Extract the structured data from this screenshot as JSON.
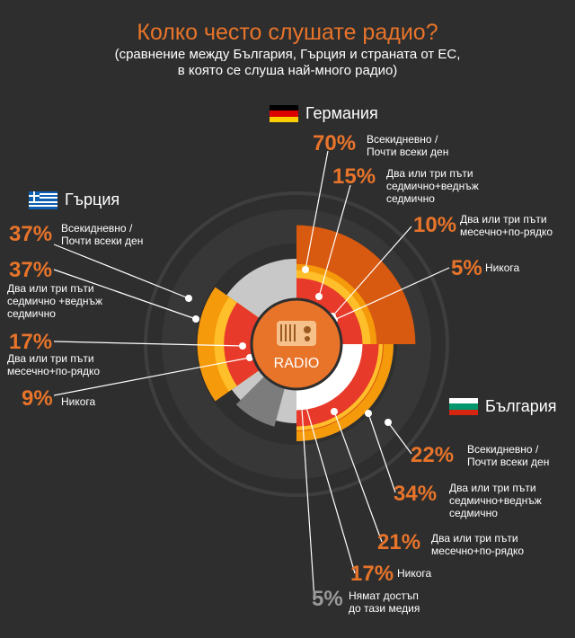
{
  "header": {
    "title": "Колко често слушате радио?",
    "subtitle_line1": "(сравнение между България, Гърция и страната от ЕС,",
    "subtitle_line2": "в която се слуша най-много радио)"
  },
  "center_label": "RADIO",
  "colors": {
    "background": "#2e2e2e",
    "accent": "#e8742a",
    "daily": "#d85a10",
    "weekly": "#f59a0b",
    "monthly": "#ffbf2a",
    "never": "#e83a2a",
    "no_access": "#ffffff",
    "rest_ring": "#3c3c3c",
    "greek_empty": "#c8c8c8",
    "bg_empty": "#9a9a9a"
  },
  "chart_data": {
    "type": "pie",
    "title": "Колко често слушате радио?",
    "series": [
      {
        "name": "Германия",
        "flag": "germany",
        "items": [
          {
            "category": "daily",
            "value": 70,
            "pct_label": "70%",
            "label_lines": [
              "Всекидневно /",
              "Почти всеки ден"
            ]
          },
          {
            "category": "weekly",
            "value": 15,
            "pct_label": "15%",
            "label_lines": [
              "Два или три пъти",
              "седмично+веднъж",
              "седмично"
            ]
          },
          {
            "category": "monthly",
            "value": 10,
            "pct_label": "10%",
            "label_lines": [
              "Два или три пъти",
              "месечно+по-рядко"
            ]
          },
          {
            "category": "never",
            "value": 5,
            "pct_label": "5%",
            "label_lines": [
              "Никога"
            ]
          }
        ]
      },
      {
        "name": "Гърция",
        "flag": "greece",
        "items": [
          {
            "category": "daily",
            "value": 37,
            "pct_label": "37%",
            "label_lines": [
              "Всекидневно /",
              "Почти всеки ден"
            ]
          },
          {
            "category": "weekly",
            "value": 37,
            "pct_label": "37%",
            "label_lines": [
              "Два или три пъти",
              "седмично +веднъж",
              "седмично"
            ]
          },
          {
            "category": "monthly",
            "value": 17,
            "pct_label": "17%",
            "label_lines": [
              "Два или три пъти",
              "месечно+по-рядко"
            ]
          },
          {
            "category": "never",
            "value": 9,
            "pct_label": "9%",
            "label_lines": [
              "Никога"
            ]
          }
        ]
      },
      {
        "name": "България",
        "flag": "bulgaria",
        "items": [
          {
            "category": "daily",
            "value": 22,
            "pct_label": "22%",
            "label_lines": [
              "Всекидневно /",
              "Почти всеки ден"
            ]
          },
          {
            "category": "weekly",
            "value": 34,
            "pct_label": "34%",
            "label_lines": [
              "Два или три пъти",
              "седмично+веднъж",
              "седмично"
            ]
          },
          {
            "category": "monthly",
            "value": 21,
            "pct_label": "21%",
            "label_lines": [
              "Два или три пъти",
              "месечно+по-рядко"
            ]
          },
          {
            "category": "never",
            "value": 17,
            "pct_label": "17%",
            "label_lines": [
              "Никога"
            ]
          },
          {
            "category": "no_access",
            "value": 5,
            "pct_label": "5%",
            "label_lines": [
              "Нямат достъп",
              "до тази медия"
            ]
          }
        ]
      }
    ]
  }
}
